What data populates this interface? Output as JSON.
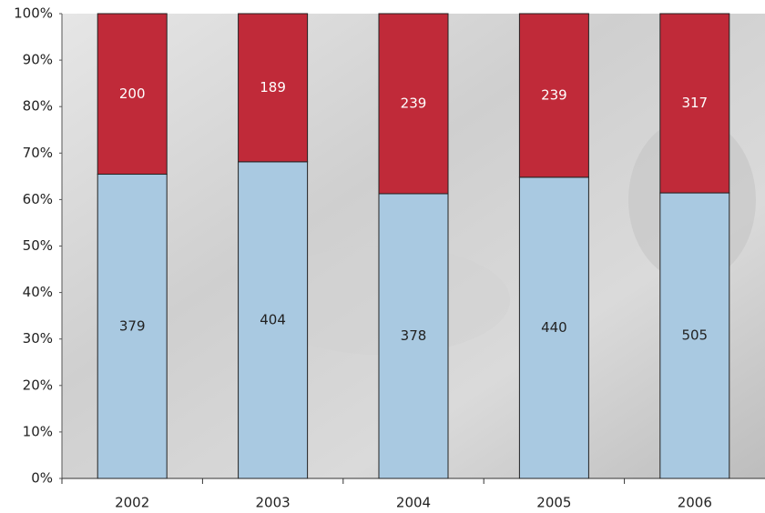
{
  "chart_data": {
    "type": "stacked-percent-bar",
    "categories": [
      "2002",
      "2003",
      "2004",
      "2005",
      "2006"
    ],
    "series": [
      {
        "color": "#a9c9e1",
        "label_color": "#222222",
        "values": [
          379,
          404,
          378,
          440,
          505
        ]
      },
      {
        "color": "#c02a39",
        "label_color": "#ffffff",
        "values": [
          200,
          189,
          239,
          239,
          317
        ]
      }
    ],
    "ylim": [
      0,
      100
    ],
    "yticks": [
      {
        "value": 0,
        "label": "0%"
      },
      {
        "value": 10,
        "label": "10%"
      },
      {
        "value": 20,
        "label": "20%"
      },
      {
        "value": 30,
        "label": "30%"
      },
      {
        "value": 40,
        "label": "40%"
      },
      {
        "value": 50,
        "label": "50%"
      },
      {
        "value": 60,
        "label": "60%"
      },
      {
        "value": 70,
        "label": "70%"
      },
      {
        "value": 80,
        "label": "80%"
      },
      {
        "value": 90,
        "label": "90%"
      },
      {
        "value": 100,
        "label": "100%"
      }
    ]
  }
}
